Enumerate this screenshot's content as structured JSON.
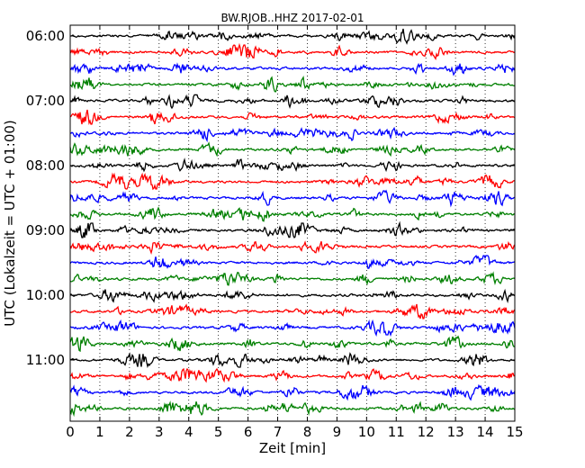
{
  "chart_data": {
    "type": "line",
    "title": "BW.RJOB..HHZ 2017-02-01",
    "xlabel": "Zeit  [min]",
    "ylabel": "UTC (Lokalzeit = UTC + 01:00)",
    "xlim": [
      0,
      15
    ],
    "x_ticks": [
      "0",
      "1",
      "2",
      "3",
      "4",
      "5",
      "6",
      "7",
      "8",
      "9",
      "10",
      "11",
      "12",
      "13",
      "14",
      "15"
    ],
    "y_tick_labels": [
      "06:00",
      "07:00",
      "08:00",
      "09:00",
      "10:00",
      "11:00"
    ],
    "traces_per_hour": 4,
    "trace_count": 24,
    "trace_colors": [
      "#000000",
      "#ff0000",
      "#0000ff",
      "#008000"
    ],
    "grid_x": true,
    "legend": "none"
  }
}
